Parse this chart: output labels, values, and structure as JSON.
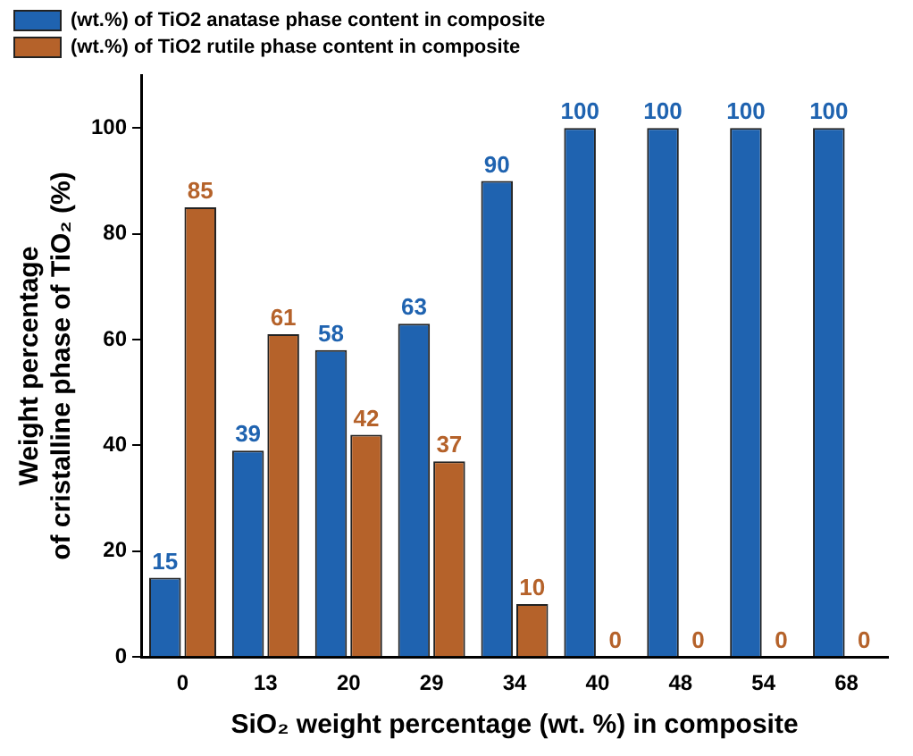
{
  "chart_data": {
    "type": "bar",
    "xlabel": "SiO₂ weight percentage (wt. %) in composite",
    "ylabel": "Weight percentage\nof cristalline phase of TiO₂ (%)",
    "categories": [
      "0",
      "13",
      "20",
      "29",
      "34",
      "40",
      "48",
      "54",
      "68"
    ],
    "series": [
      {
        "name": "(wt.%) of TiO2 anatase phase content in composite",
        "color": "#1f63b0",
        "values": [
          15,
          39,
          58,
          63,
          90,
          100,
          100,
          100,
          100
        ]
      },
      {
        "name": "(wt.%) of TiO2 rutile phase content in composite",
        "color": "#b5622a",
        "values": [
          85,
          61,
          42,
          37,
          10,
          0,
          0,
          0,
          0
        ]
      }
    ],
    "ylim": [
      0,
      110
    ],
    "yticks": [
      0,
      20,
      40,
      60,
      80,
      100
    ],
    "grid": false,
    "legend": "top left",
    "data_labels": true
  }
}
